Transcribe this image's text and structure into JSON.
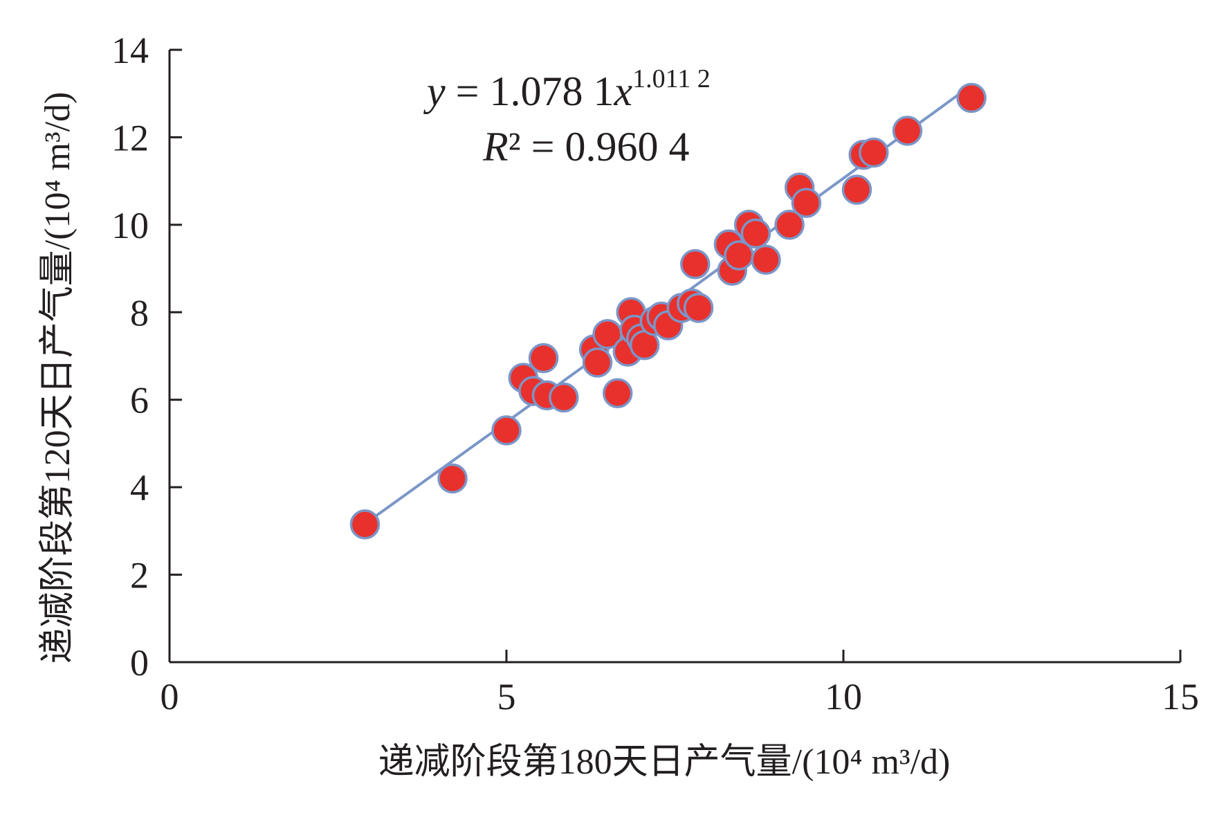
{
  "chart_data": {
    "type": "scatter",
    "title": "",
    "xlabel": "递减阶段第180天日产气量/(10⁴ m³/d)",
    "ylabel": "递减阶段第120天日产气量/(10⁴ m³/d)",
    "xlim": [
      0,
      15
    ],
    "ylim": [
      0,
      14
    ],
    "xticks": [
      "0",
      "5",
      "10",
      "15"
    ],
    "yticks": [
      "0",
      "2",
      "4",
      "6",
      "8",
      "10",
      "12",
      "14"
    ],
    "grid": false,
    "legend": "none",
    "point_color": "#e8312d",
    "point_edge_color": "#7b96c8",
    "trendline_color": "#7b96c8",
    "trendline": {
      "type": "power",
      "coefficient": 1.0781,
      "exponent": 1.0112,
      "x_range": [
        2.9,
        11.9
      ]
    },
    "equation": {
      "line1_var": "y",
      "line1_mid": " = 1.078 1",
      "line1_var2": "x",
      "line1_exp": "1.011 2",
      "line2_var": "R",
      "line2_rest": "² = 0.960 4"
    },
    "points": [
      {
        "x": 2.9,
        "y": 3.15
      },
      {
        "x": 4.2,
        "y": 4.2
      },
      {
        "x": 5.0,
        "y": 5.3
      },
      {
        "x": 5.25,
        "y": 6.5
      },
      {
        "x": 5.4,
        "y": 6.2
      },
      {
        "x": 5.55,
        "y": 6.95
      },
      {
        "x": 5.6,
        "y": 6.1
      },
      {
        "x": 5.85,
        "y": 6.05
      },
      {
        "x": 6.3,
        "y": 7.15
      },
      {
        "x": 6.35,
        "y": 6.85
      },
      {
        "x": 6.5,
        "y": 7.5
      },
      {
        "x": 6.65,
        "y": 6.15
      },
      {
        "x": 6.8,
        "y": 7.1
      },
      {
        "x": 6.85,
        "y": 8.0
      },
      {
        "x": 6.9,
        "y": 7.6
      },
      {
        "x": 7.0,
        "y": 7.4
      },
      {
        "x": 7.05,
        "y": 7.25
      },
      {
        "x": 7.2,
        "y": 7.8
      },
      {
        "x": 7.3,
        "y": 7.9
      },
      {
        "x": 7.4,
        "y": 7.7
      },
      {
        "x": 7.6,
        "y": 8.1
      },
      {
        "x": 7.75,
        "y": 8.2
      },
      {
        "x": 7.8,
        "y": 9.1
      },
      {
        "x": 7.85,
        "y": 8.1
      },
      {
        "x": 8.3,
        "y": 9.55
      },
      {
        "x": 8.35,
        "y": 8.95
      },
      {
        "x": 8.45,
        "y": 9.3
      },
      {
        "x": 8.6,
        "y": 10.0
      },
      {
        "x": 8.7,
        "y": 9.8
      },
      {
        "x": 8.85,
        "y": 9.2
      },
      {
        "x": 9.2,
        "y": 10.0
      },
      {
        "x": 9.35,
        "y": 10.85
      },
      {
        "x": 9.45,
        "y": 10.5
      },
      {
        "x": 10.2,
        "y": 10.8
      },
      {
        "x": 10.3,
        "y": 11.6
      },
      {
        "x": 10.45,
        "y": 11.65
      },
      {
        "x": 10.95,
        "y": 12.15
      },
      {
        "x": 11.9,
        "y": 12.9
      }
    ]
  }
}
